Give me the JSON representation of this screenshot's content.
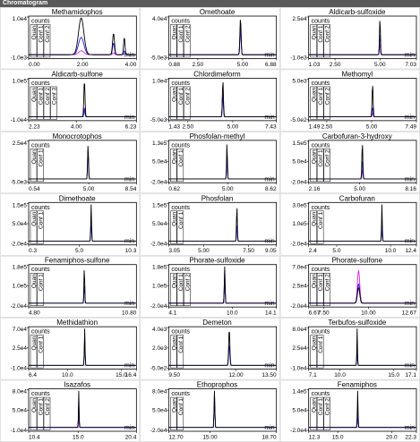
{
  "header": {
    "title": "Chromatogram"
  },
  "legend": {
    "counts": "counts",
    "min": "min",
    "quan": "Quan",
    "conf1": "Conf 1",
    "conf2": "Conf 2",
    "conf3": "Conf 3"
  },
  "colors": {
    "quan": "#000000",
    "conf1": "#2020e0",
    "conf2": "#e020e0",
    "conf3": "#20a0a0",
    "header_bg": "#5a5a5a"
  },
  "chart_data": [
    {
      "title": "Methamidophos",
      "type": "line",
      "ytop": "1.0e4",
      "ybot": "-1.0e3",
      "ymid": "",
      "xticks": [
        "0.00",
        "2.00",
        "4.00"
      ],
      "xlim": [
        0.0,
        4.0
      ],
      "traces": [
        "Quan",
        "Conf 1",
        "Conf 2"
      ],
      "peaks": [
        {
          "x": 1.95,
          "w": 0.28,
          "h": [
            0.95,
            0.45,
            0.1
          ]
        },
        {
          "x": 3.15,
          "w": 0.1,
          "h": [
            0.55,
            0.3,
            0.05
          ]
        },
        {
          "x": 3.55,
          "w": 0.07,
          "h": [
            0.45,
            0.1,
            0.02
          ]
        }
      ]
    },
    {
      "title": "Omethoate",
      "type": "line",
      "ytop": "4.0e4",
      "ybot": "-5.0e3",
      "ymid": "",
      "xticks": [
        "0.88",
        "2.50",
        "5.00",
        "6.88"
      ],
      "xlim": [
        0.88,
        6.88
      ],
      "traces": [
        "Quan",
        "Conf 1",
        "Conf 2"
      ],
      "peaks": [
        {
          "x": 4.88,
          "w": 0.09,
          "h": [
            0.95,
            0.75,
            0.8
          ]
        }
      ]
    },
    {
      "title": "Aldicarb-sulfoxide",
      "type": "line",
      "ytop": "2.5e4",
      "ybot": "-1.0e3",
      "ymid": "",
      "xticks": [
        "1.03",
        "2.50",
        "5.00",
        "7.03"
      ],
      "xlim": [
        1.03,
        7.03
      ],
      "traces": [
        "Quan",
        "Conf 1",
        "Conf 2"
      ],
      "peaks": [
        {
          "x": 5.0,
          "w": 0.07,
          "h": [
            0.95,
            0.55,
            0.3
          ]
        }
      ]
    },
    {
      "title": "Aldicarb-sulfone",
      "type": "line",
      "ytop": "1.0e5",
      "ybot": "-1.0e4",
      "ymid": "",
      "xticks": [
        "2.23",
        "4.00",
        "6.23"
      ],
      "xlim": [
        2.23,
        6.23
      ],
      "traces": [
        "Quan",
        "Conf 1",
        "Conf 2",
        "Conf 3"
      ],
      "peaks": [
        {
          "x": 4.3,
          "w": 0.06,
          "h": [
            0.95,
            0.2,
            0.25,
            0.15
          ]
        }
      ]
    },
    {
      "title": "Chlordimeform",
      "type": "line",
      "ytop": "1.0e4",
      "ybot": "-5.0e3",
      "ymid": "",
      "xticks": [
        "1.43",
        "2.50",
        "5.00",
        "7.43"
      ],
      "xlim": [
        1.43,
        7.43
      ],
      "traces": [
        "Quan",
        "Conf 1",
        "Conf 2"
      ],
      "peaks": [
        {
          "x": 4.45,
          "w": 0.08,
          "h": [
            0.95,
            0.55,
            0.75
          ]
        }
      ]
    },
    {
      "title": "Methomyl",
      "type": "line",
      "ytop": "5.0e3",
      "ybot": "-5.0e2",
      "ymid": "",
      "xticks": [
        "1.49",
        "2.50",
        "5.00",
        "7.49"
      ],
      "xlim": [
        1.49,
        7.49
      ],
      "traces": [
        "Quan",
        "Conf 1",
        "Conf 2"
      ],
      "peaks": [
        {
          "x": 5.05,
          "w": 0.08,
          "h": [
            0.85,
            0.25,
            0.1
          ]
        }
      ]
    },
    {
      "title": "Monocrotophos",
      "type": "line",
      "ytop": "2.5e4",
      "ybot": "-5.0e3",
      "ymid": "",
      "xticks": [
        "0.54",
        "5.00",
        "8.54"
      ],
      "xlim": [
        0.54,
        8.54
      ],
      "traces": [
        "Quan",
        "Conf 1"
      ],
      "peaks": [
        {
          "x": 4.95,
          "w": 0.09,
          "h": [
            0.9,
            0.8
          ]
        }
      ]
    },
    {
      "title": "Phosfolan-methyl",
      "type": "line",
      "ytop": "1.3e5",
      "ybot": "-2.0e4",
      "ymid": "5.0e4",
      "xticks": [
        "0.62",
        "5.00",
        "8.62"
      ],
      "xlim": [
        0.62,
        8.62
      ],
      "traces": [
        "Quan",
        "Conf 1"
      ],
      "peaks": [
        {
          "x": 4.95,
          "w": 0.08,
          "h": [
            0.95,
            0.6
          ]
        }
      ]
    },
    {
      "title": "Carbofuran-3-hydroxy",
      "type": "line",
      "ytop": "1.5e5",
      "ybot": "-2.0e4",
      "ymid": "5.0e4",
      "xticks": [
        "2.16",
        "5.00",
        "8.16"
      ],
      "xlim": [
        2.16,
        8.16
      ],
      "traces": [
        "Quan",
        "Conf 1",
        "Conf 2"
      ],
      "peaks": [
        {
          "x": 5.15,
          "w": 0.07,
          "h": [
            0.95,
            0.5,
            0.25
          ]
        }
      ]
    },
    {
      "title": "Dimethoate",
      "type": "line",
      "ytop": "1.5e5",
      "ybot": "-2.0e4",
      "ymid": "5.0e4",
      "xticks": [
        "0.3",
        "5.0",
        "10.3"
      ],
      "xlim": [
        0.3,
        10.3
      ],
      "traces": [
        "Quan",
        "Conf 1"
      ],
      "peaks": [
        {
          "x": 6.1,
          "w": 0.1,
          "h": [
            0.95,
            0.55
          ]
        }
      ]
    },
    {
      "title": "Phosfolan",
      "type": "line",
      "ytop": "1.5e5",
      "ybot": "-2.0e4",
      "ymid": "5.0e4",
      "xticks": [
        "3.05",
        "5.00",
        "7.50",
        "9.05"
      ],
      "xlim": [
        3.05,
        9.05
      ],
      "traces": [
        "Quan",
        "Conf 1"
      ],
      "peaks": [
        {
          "x": 6.85,
          "w": 0.06,
          "h": [
            0.95,
            0.45
          ]
        }
      ]
    },
    {
      "title": "Carbofuran",
      "type": "line",
      "ytop": "3.0e5",
      "ybot": "-2.0e4",
      "ymid": "1.0e5",
      "xticks": [
        "2.4",
        "5.0",
        "10.0",
        "12.4"
      ],
      "xlim": [
        2.4,
        12.4
      ],
      "traces": [
        "Quan",
        "Conf 1"
      ],
      "peaks": [
        {
          "x": 9.2,
          "w": 0.09,
          "h": [
            0.95,
            0.4
          ]
        }
      ]
    },
    {
      "title": "Fenamiphos-sulfone",
      "type": "line",
      "ytop": "1.8e5",
      "ybot": "-2.0e4",
      "ymid": "1.0e5",
      "xticks": [
        "4.80",
        "10.80"
      ],
      "xlim": [
        4.8,
        10.8
      ],
      "traces": [
        "Quan",
        "Conf 1"
      ],
      "peaks": [
        {
          "x": 7.9,
          "w": 0.06,
          "h": [
            0.95,
            0.5
          ]
        }
      ]
    },
    {
      "title": "Phorate-sulfoxide",
      "type": "line",
      "ytop": "1.8e5",
      "ybot": "-2.0e4",
      "ymid": "1.0e5",
      "xticks": [
        "4.1",
        "10.0",
        "14.1"
      ],
      "xlim": [
        4.1,
        14.1
      ],
      "traces": [
        "Quan",
        "Conf 1",
        "Conf 2"
      ],
      "peaks": [
        {
          "x": 9.3,
          "w": 0.1,
          "h": [
            0.95,
            0.85,
            0.85
          ]
        }
      ]
    },
    {
      "title": "Phorate-sulfone",
      "type": "line",
      "ytop": "7.0e4",
      "ybot": "-2.0e4",
      "ymid": "2.5e4",
      "xticks": [
        "6.67",
        "7.50",
        "10.00",
        "12.67"
      ],
      "xlim": [
        6.67,
        12.67
      ],
      "traces": [
        "Quan",
        "Conf 1",
        "Conf 2"
      ],
      "peaks": [
        {
          "x": 9.45,
          "w": 0.18,
          "h": [
            0.4,
            0.5,
            0.85
          ]
        }
      ]
    },
    {
      "title": "Methidathion",
      "type": "line",
      "ytop": "7.0e4",
      "ybot": "-1.0e4",
      "ymid": "2.5e4",
      "xticks": [
        "6.4",
        "10.0",
        "15.0",
        "16.4"
      ],
      "xlim": [
        6.4,
        16.4
      ],
      "traces": [
        "Quan",
        "Conf 1"
      ],
      "peaks": [
        {
          "x": 11.6,
          "w": 0.09,
          "h": [
            0.95,
            0.8
          ]
        }
      ]
    },
    {
      "title": "Demeton",
      "type": "line",
      "ytop": "4.0e3",
      "ybot": "-5.0e2",
      "ymid": "2.0e3",
      "xticks": [
        "9.50",
        "12.00",
        "13.50"
      ],
      "xlim": [
        9.5,
        13.5
      ],
      "traces": [
        "Quan",
        "Conf 1"
      ],
      "peaks": [
        {
          "x": 11.75,
          "w": 0.06,
          "h": [
            0.95,
            0.55
          ]
        }
      ]
    },
    {
      "title": "Terbufos-sulfoxide",
      "type": "line",
      "ytop": "8.0e4",
      "ybot": "-1.0e4",
      "ymid": "2.5e4",
      "xticks": [
        "7.1",
        "10.0",
        "15.0",
        "17.1"
      ],
      "xlim": [
        7.1,
        17.1
      ],
      "traces": [
        "Quan",
        "Conf 1"
      ],
      "peaks": [
        {
          "x": 11.6,
          "w": 0.08,
          "h": [
            0.95,
            0.5
          ]
        }
      ]
    },
    {
      "title": "Isazafos",
      "type": "line",
      "ytop": "8.0e4",
      "ybot": "-1.0e4",
      "ymid": "5.0e4",
      "xticks": [
        "10.4",
        "15.0",
        "20.4"
      ],
      "xlim": [
        10.4,
        20.4
      ],
      "traces": [
        "Quan",
        "Conf 1",
        "Conf 2"
      ],
      "peaks": [
        {
          "x": 15.05,
          "w": 0.08,
          "h": [
            0.95,
            0.7,
            0.3
          ]
        }
      ]
    },
    {
      "title": "Ethoprophos",
      "type": "line",
      "ytop": "8.0e4",
      "ybot": "-2.0e4",
      "ymid": "5.0e4",
      "xticks": [
        "12.70",
        "15.00",
        "18.70"
      ],
      "xlim": [
        12.7,
        18.7
      ],
      "traces": [
        "Quan",
        "Conf 1"
      ],
      "peaks": [
        {
          "x": 15.25,
          "w": 0.06,
          "h": [
            0.95,
            0.9
          ]
        }
      ]
    },
    {
      "title": "Fenamiphos",
      "type": "line",
      "ytop": "1.4e5",
      "ybot": "-2.0e4",
      "ymid": "5.0e4",
      "xticks": [
        "12.3",
        "15.0",
        "20.0",
        "22.3"
      ],
      "xlim": [
        12.3,
        22.3
      ],
      "traces": [
        "Quan",
        "Conf 1",
        "Conf 2"
      ],
      "peaks": [
        {
          "x": 16.85,
          "w": 0.09,
          "h": [
            0.95,
            0.4,
            0.5
          ]
        }
      ]
    }
  ]
}
